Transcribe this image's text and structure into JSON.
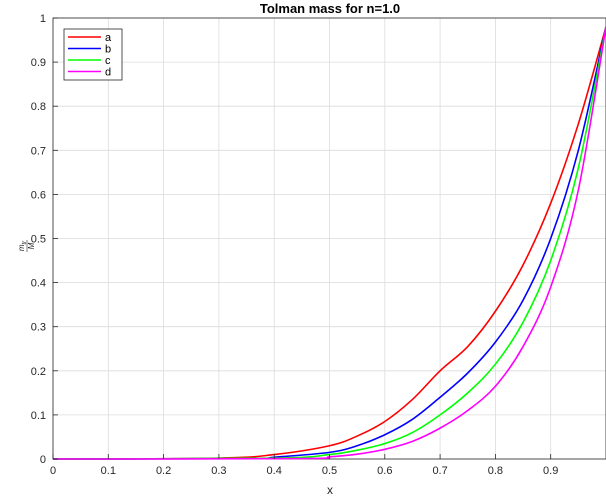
{
  "chart_data": {
    "type": "line",
    "title": "Tolman mass for n=1.0",
    "xlabel": "x",
    "ylabel_num": "m",
    "ylabel_sub": "tr",
    "ylabel_den": "M",
    "xlim": [
      0,
      1
    ],
    "ylim": [
      0,
      1
    ],
    "xticks": [
      0,
      0.1,
      0.2,
      0.3,
      0.4,
      0.5,
      0.6,
      0.7,
      0.8,
      0.9
    ],
    "xtick_labels": [
      "0",
      "0.1",
      "0.2",
      "0.3",
      "0.4",
      "0.5",
      "0.6",
      "0.7",
      "0.8",
      "0.9"
    ],
    "yticks": [
      0,
      0.1,
      0.2,
      0.3,
      0.4,
      0.5,
      0.6,
      0.7,
      0.8,
      0.9,
      1
    ],
    "ytick_labels": [
      "0",
      "0.1",
      "0.2",
      "0.3",
      "0.4",
      "0.5",
      "0.6",
      "0.7",
      "0.8",
      "0.9",
      "1"
    ],
    "grid": true,
    "legend_position": "top-left",
    "series": [
      {
        "name": "a",
        "color": "#ff0000",
        "x": [
          0,
          0.3,
          0.4,
          0.5,
          0.55,
          0.6,
          0.65,
          0.7,
          0.75,
          0.8,
          0.85,
          0.9,
          0.95,
          1.0
        ],
        "y": [
          0,
          0.002,
          0.01,
          0.03,
          0.052,
          0.085,
          0.135,
          0.2,
          0.255,
          0.335,
          0.44,
          0.58,
          0.76,
          0.98
        ]
      },
      {
        "name": "b",
        "color": "#0000ff",
        "x": [
          0,
          0.35,
          0.4,
          0.5,
          0.55,
          0.6,
          0.65,
          0.7,
          0.75,
          0.8,
          0.85,
          0.9,
          0.95,
          1.0
        ],
        "y": [
          0,
          0.001,
          0.004,
          0.015,
          0.03,
          0.055,
          0.09,
          0.14,
          0.195,
          0.265,
          0.36,
          0.5,
          0.7,
          0.98
        ]
      },
      {
        "name": "c",
        "color": "#00ff00",
        "x": [
          0,
          0.4,
          0.5,
          0.55,
          0.6,
          0.65,
          0.7,
          0.75,
          0.8,
          0.85,
          0.9,
          0.95,
          1.0
        ],
        "y": [
          0,
          0.002,
          0.01,
          0.02,
          0.035,
          0.06,
          0.1,
          0.15,
          0.215,
          0.31,
          0.45,
          0.66,
          0.98
        ]
      },
      {
        "name": "d",
        "color": "#ff00ff",
        "x": [
          0,
          0.45,
          0.5,
          0.55,
          0.6,
          0.65,
          0.7,
          0.75,
          0.8,
          0.85,
          0.9,
          0.95,
          1.0
        ],
        "y": [
          0,
          0.001,
          0.005,
          0.011,
          0.022,
          0.04,
          0.07,
          0.11,
          0.165,
          0.255,
          0.39,
          0.61,
          0.98
        ]
      }
    ]
  }
}
